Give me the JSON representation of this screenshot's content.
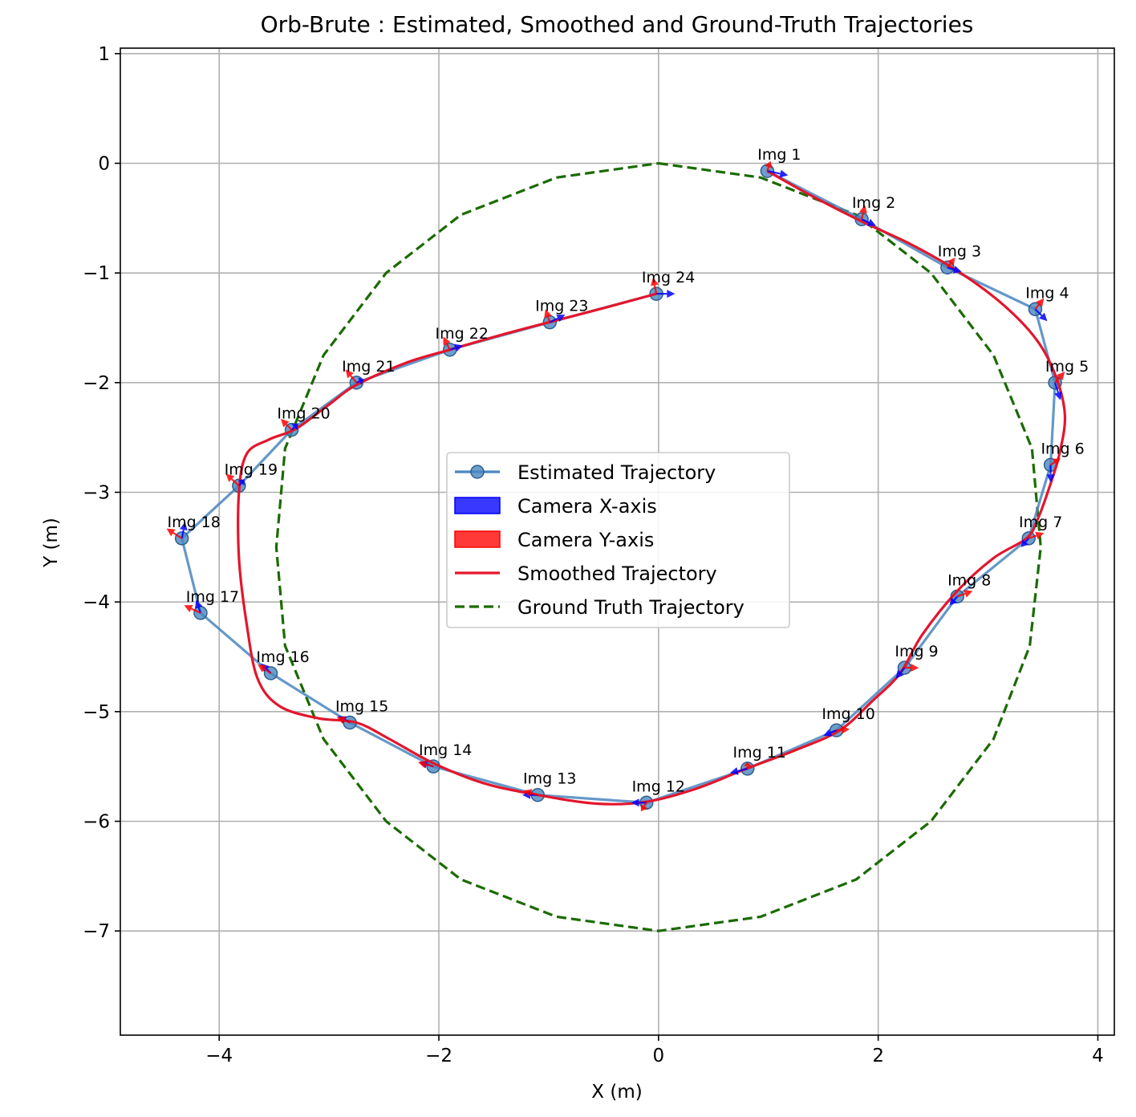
{
  "chart_data": {
    "type": "line",
    "title": "Orb-Brute : Estimated, Smoothed and Ground-Truth Trajectories",
    "xlabel": "X (m)",
    "ylabel": "Y (m)",
    "xlim": [
      -4.9,
      4.15
    ],
    "ylim": [
      -7.95,
      1.05
    ],
    "xticks": [
      -4,
      -2,
      0,
      2,
      4
    ],
    "yticks": [
      1,
      0,
      -1,
      -2,
      -3,
      -4,
      -5,
      -6,
      -7
    ],
    "xtick_labels": [
      "−4",
      "−2",
      "0",
      "2",
      "4"
    ],
    "ytick_labels": [
      "1",
      "0",
      "−1",
      "−2",
      "−3",
      "−4",
      "−5",
      "−6",
      "−7"
    ],
    "grid": true,
    "legend_position": "center",
    "legend": [
      {
        "label": "Estimated Trajectory",
        "kind": "line-marker",
        "color": "#4a86bf"
      },
      {
        "label": "Camera X-axis",
        "kind": "patch",
        "color": "#0000ff"
      },
      {
        "label": "Camera Y-axis",
        "kind": "patch",
        "color": "#ff0000"
      },
      {
        "label": "Smoothed Trajectory",
        "kind": "line",
        "color": "#e3162c"
      },
      {
        "label": "Ground Truth Trajectory",
        "kind": "dashed",
        "color": "#1a6b00"
      }
    ],
    "estimated": {
      "name": "Estimated Trajectory",
      "color": "#4a86bf",
      "points": [
        {
          "label": "Img 1",
          "x": 0.99,
          "y": -0.07
        },
        {
          "label": "Img 2",
          "x": 1.85,
          "y": -0.51
        },
        {
          "label": "Img 3",
          "x": 2.63,
          "y": -0.95
        },
        {
          "label": "Img 4",
          "x": 3.43,
          "y": -1.33
        },
        {
          "label": "Img 5",
          "x": 3.61,
          "y": -2.0
        },
        {
          "label": "Img 6",
          "x": 3.57,
          "y": -2.75
        },
        {
          "label": "Img 7",
          "x": 3.37,
          "y": -3.42
        },
        {
          "label": "Img 8",
          "x": 2.72,
          "y": -3.95
        },
        {
          "label": "Img 9",
          "x": 2.24,
          "y": -4.6
        },
        {
          "label": "Img 10",
          "x": 1.62,
          "y": -5.17
        },
        {
          "label": "Img 11",
          "x": 0.81,
          "y": -5.52
        },
        {
          "label": "Img 12",
          "x": -0.11,
          "y": -5.83
        },
        {
          "label": "Img 13",
          "x": -1.1,
          "y": -5.76
        },
        {
          "label": "Img 14",
          "x": -2.05,
          "y": -5.5
        },
        {
          "label": "Img 15",
          "x": -2.81,
          "y": -5.1
        },
        {
          "label": "Img 16",
          "x": -3.53,
          "y": -4.65
        },
        {
          "label": "Img 17",
          "x": -4.17,
          "y": -4.1
        },
        {
          "label": "Img 18",
          "x": -4.34,
          "y": -3.42
        },
        {
          "label": "Img 19",
          "x": -3.82,
          "y": -2.94
        },
        {
          "label": "Img 20",
          "x": -3.34,
          "y": -2.43
        },
        {
          "label": "Img 21",
          "x": -2.75,
          "y": -2.0
        },
        {
          "label": "Img 22",
          "x": -1.9,
          "y": -1.7
        },
        {
          "label": "Img 23",
          "x": -0.99,
          "y": -1.45
        },
        {
          "label": "Img 24",
          "x": -0.02,
          "y": -1.19
        }
      ]
    },
    "camera_axes": {
      "x_axis_color": "#0000ff",
      "y_axis_color": "#ff0000",
      "x_dirs": [
        [
          0.19,
          -0.04
        ],
        [
          0.13,
          -0.06
        ],
        [
          0.13,
          -0.04
        ],
        [
          0.11,
          -0.11
        ],
        [
          0.05,
          -0.16
        ],
        [
          0.0,
          -0.16
        ],
        [
          -0.07,
          -0.08
        ],
        [
          -0.07,
          -0.08
        ],
        [
          -0.08,
          -0.1
        ],
        [
          -0.12,
          -0.05
        ],
        [
          -0.16,
          -0.04
        ],
        [
          -0.14,
          0.0
        ],
        [
          -0.14,
          0.0
        ],
        [
          -0.13,
          0.04
        ],
        [
          -0.11,
          0.06
        ],
        [
          -0.09,
          0.09
        ],
        [
          -0.04,
          0.12
        ],
        [
          0.03,
          0.15
        ],
        [
          0.05,
          0.06
        ],
        [
          0.06,
          0.06
        ],
        [
          0.07,
          0.03
        ],
        [
          0.12,
          0.04
        ],
        [
          0.14,
          0.07
        ],
        [
          0.17,
          0.0
        ]
      ],
      "y_dirs": [
        [
          0.03,
          0.09
        ],
        [
          0.03,
          0.13
        ],
        [
          0.07,
          0.09
        ],
        [
          0.08,
          0.1
        ],
        [
          0.09,
          0.1
        ],
        [
          0.09,
          0.06
        ],
        [
          0.14,
          0.05
        ],
        [
          0.14,
          0.05
        ],
        [
          0.13,
          0.0
        ],
        [
          0.12,
          0.01
        ],
        [
          0.0,
          0.06
        ],
        [
          -0.05,
          -0.08
        ],
        [
          -0.13,
          0.04
        ],
        [
          -0.14,
          0.04
        ],
        [
          -0.12,
          0.05
        ],
        [
          -0.12,
          0.08
        ],
        [
          -0.15,
          0.07
        ],
        [
          -0.14,
          0.09
        ],
        [
          -0.12,
          0.11
        ],
        [
          -0.1,
          0.1
        ],
        [
          -0.1,
          0.12
        ],
        [
          -0.06,
          0.12
        ],
        [
          -0.04,
          0.12
        ],
        [
          -0.03,
          0.15
        ]
      ]
    },
    "smoothed": {
      "name": "Smoothed Trajectory",
      "color": "#e3162c",
      "points": [
        [
          0.99,
          -0.07
        ],
        [
          1.4,
          -0.3
        ],
        [
          1.85,
          -0.53
        ],
        [
          2.3,
          -0.74
        ],
        [
          2.75,
          -1.0
        ],
        [
          3.15,
          -1.3
        ],
        [
          3.45,
          -1.62
        ],
        [
          3.62,
          -1.95
        ],
        [
          3.7,
          -2.3
        ],
        [
          3.65,
          -2.65
        ],
        [
          3.55,
          -2.98
        ],
        [
          3.45,
          -3.25
        ],
        [
          3.35,
          -3.42
        ],
        [
          3.05,
          -3.6
        ],
        [
          2.72,
          -3.9
        ],
        [
          2.4,
          -4.3
        ],
        [
          2.2,
          -4.65
        ],
        [
          1.95,
          -4.9
        ],
        [
          1.65,
          -5.17
        ],
        [
          1.25,
          -5.35
        ],
        [
          0.8,
          -5.52
        ],
        [
          0.35,
          -5.7
        ],
        [
          -0.1,
          -5.82
        ],
        [
          -0.55,
          -5.84
        ],
        [
          -1.1,
          -5.76
        ],
        [
          -1.6,
          -5.65
        ],
        [
          -2.05,
          -5.47
        ],
        [
          -2.45,
          -5.25
        ],
        [
          -2.75,
          -5.1
        ],
        [
          -3.1,
          -5.06
        ],
        [
          -3.45,
          -4.95
        ],
        [
          -3.65,
          -4.7
        ],
        [
          -3.75,
          -4.2
        ],
        [
          -3.82,
          -3.6
        ],
        [
          -3.82,
          -3.0
        ],
        [
          -3.75,
          -2.65
        ],
        [
          -3.55,
          -2.52
        ],
        [
          -3.3,
          -2.42
        ],
        [
          -3.0,
          -2.2
        ],
        [
          -2.75,
          -2.02
        ],
        [
          -2.3,
          -1.82
        ],
        [
          -1.9,
          -1.7
        ],
        [
          -1.45,
          -1.57
        ],
        [
          -1.0,
          -1.45
        ],
        [
          -0.5,
          -1.32
        ],
        [
          -0.02,
          -1.19
        ]
      ]
    },
    "ground_truth": {
      "name": "Ground Truth Trajectory",
      "color": "#1a6b00",
      "points": [
        [
          0.0,
          0.0
        ],
        [
          0.93,
          -0.13
        ],
        [
          1.8,
          -0.47
        ],
        [
          2.48,
          -1.0
        ],
        [
          3.05,
          -1.75
        ],
        [
          3.4,
          -2.6
        ],
        [
          3.48,
          -3.5
        ],
        [
          3.38,
          -4.4
        ],
        [
          3.05,
          -5.25
        ],
        [
          2.48,
          -6.0
        ],
        [
          1.8,
          -6.53
        ],
        [
          0.93,
          -6.87
        ],
        [
          0.0,
          -7.0
        ],
        [
          -0.93,
          -6.87
        ],
        [
          -1.8,
          -6.53
        ],
        [
          -2.48,
          -6.0
        ],
        [
          -3.05,
          -5.25
        ],
        [
          -3.4,
          -4.4
        ],
        [
          -3.48,
          -3.5
        ],
        [
          -3.4,
          -2.6
        ],
        [
          -3.05,
          -1.75
        ],
        [
          -2.48,
          -1.0
        ],
        [
          -1.8,
          -0.47
        ],
        [
          -0.93,
          -0.13
        ],
        [
          0.0,
          0.0
        ]
      ]
    }
  }
}
